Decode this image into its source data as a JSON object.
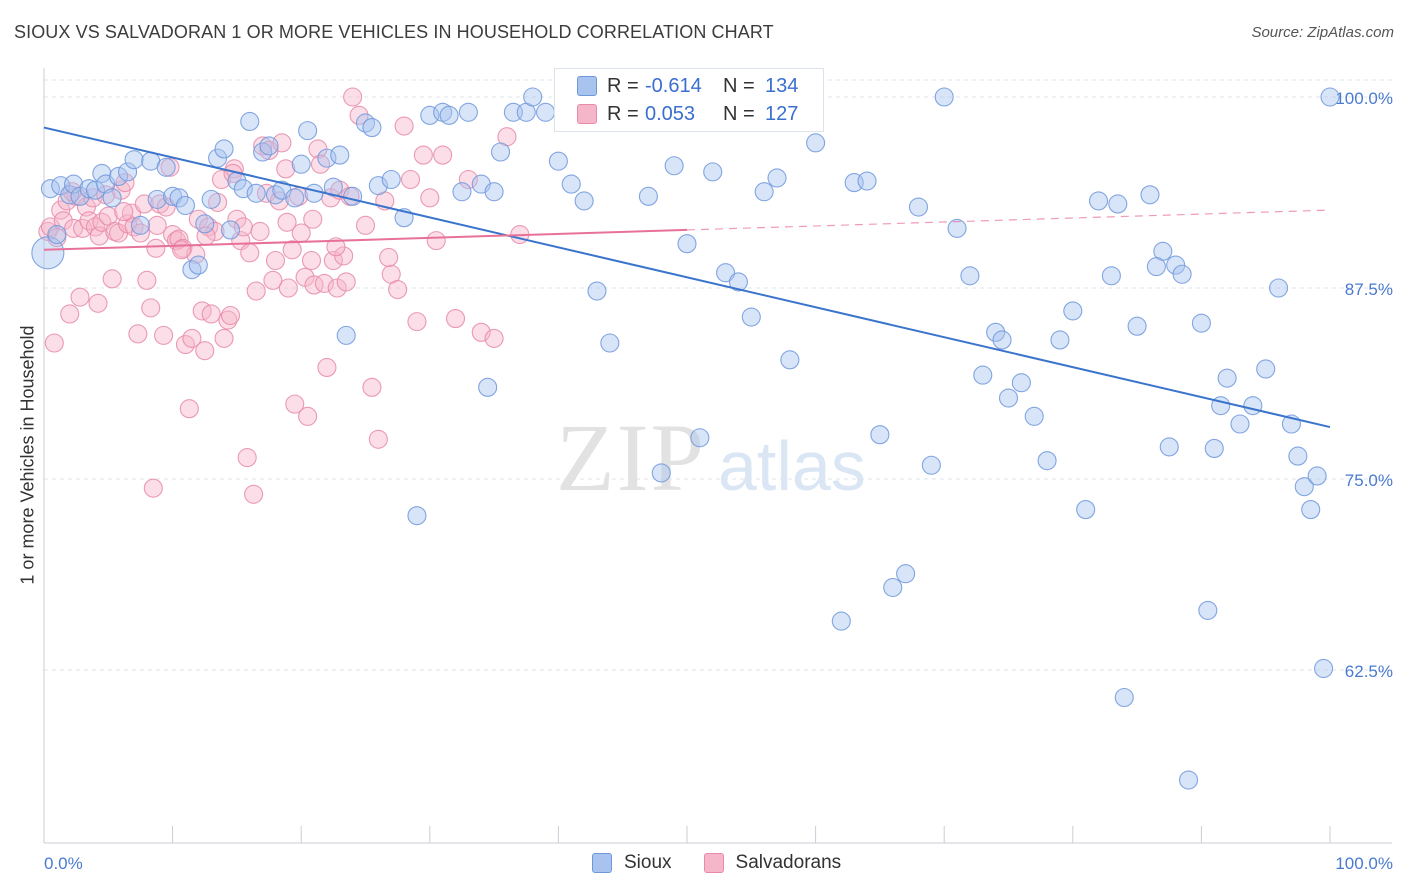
{
  "header": {
    "title": "SIOUX VS SALVADORAN 1 OR MORE VEHICLES IN HOUSEHOLD CORRELATION CHART",
    "source": "Source: ZipAtlas.com"
  },
  "watermark": {
    "zip": "ZIP",
    "atlas": "atlas"
  },
  "legend_top": {
    "rows": [
      {
        "r_label": "R =",
        "r_value": "-0.614",
        "n_label": "N =",
        "n_value": "134"
      },
      {
        "r_label": "R =",
        "r_value": "0.053",
        "n_label": "N =",
        "n_value": "127"
      }
    ]
  },
  "legend_bottom": {
    "items": [
      "Sioux",
      "Salvadorans"
    ]
  },
  "colors": {
    "sioux_fill": "#a9c3ef",
    "sioux_stroke": "#6f98dc",
    "sioux_line": "#3a74cc",
    "salv_fill": "#f6b6ca",
    "salv_stroke": "#e88aa8",
    "salv_line": "#e8719a",
    "tick_label": "#4a7ad0",
    "grid": "#dfe4ea"
  },
  "chart_data": {
    "type": "scatter",
    "title": "SIOUX VS SALVADORAN 1 OR MORE VEHICLES IN HOUSEHOLD CORRELATION CHART",
    "xlabel": "",
    "ylabel": "1 or more Vehicles in Household",
    "xlim": [
      0,
      100
    ],
    "ylim": [
      52,
      102
    ],
    "x_tick_labels": [
      "0.0%",
      "100.0%"
    ],
    "y_ticks": [
      62.5,
      75.0,
      87.5,
      100.0
    ],
    "y_tick_labels": [
      "62.5%",
      "75.0%",
      "87.5%",
      "100.0%"
    ],
    "grid": "horizontal dashed",
    "legend": "top-center and bottom-center",
    "series": [
      {
        "name": "Sioux",
        "r": -0.614,
        "n": 134,
        "trend": {
          "x": [
            0,
            100
          ],
          "y": [
            98.0,
            78.4
          ],
          "dashed_after": null
        },
        "points": [
          [
            0.3,
            89.8
          ],
          [
            0.5,
            94.0
          ],
          [
            1.0,
            91.0
          ],
          [
            1.3,
            94.2
          ],
          [
            2.0,
            93.6
          ],
          [
            2.3,
            94.3
          ],
          [
            2.8,
            93.5
          ],
          [
            3.5,
            94.0
          ],
          [
            4.0,
            93.9
          ],
          [
            4.5,
            95.0
          ],
          [
            4.8,
            94.3
          ],
          [
            5.3,
            93.4
          ],
          [
            5.8,
            94.8
          ],
          [
            6.5,
            95.1
          ],
          [
            7.0,
            95.9
          ],
          [
            7.5,
            91.6
          ],
          [
            8.3,
            95.8
          ],
          [
            8.8,
            93.3
          ],
          [
            9.5,
            95.4
          ],
          [
            10.0,
            93.5
          ],
          [
            10.5,
            93.4
          ],
          [
            11.0,
            92.9
          ],
          [
            11.5,
            88.7
          ],
          [
            12.0,
            89.0
          ],
          [
            12.5,
            91.7
          ],
          [
            13.0,
            93.3
          ],
          [
            13.5,
            96.0
          ],
          [
            14.0,
            96.6
          ],
          [
            14.5,
            91.3
          ],
          [
            15.0,
            94.5
          ],
          [
            15.5,
            94.0
          ],
          [
            16.0,
            98.4
          ],
          [
            16.5,
            93.7
          ],
          [
            17.0,
            96.4
          ],
          [
            17.5,
            96.8
          ],
          [
            18.0,
            93.6
          ],
          [
            18.5,
            93.9
          ],
          [
            19.5,
            93.4
          ],
          [
            20.0,
            95.6
          ],
          [
            20.5,
            97.8
          ],
          [
            21.0,
            93.7
          ],
          [
            22.0,
            96.0
          ],
          [
            22.5,
            94.1
          ],
          [
            23.0,
            96.2
          ],
          [
            23.5,
            84.4
          ],
          [
            24.0,
            93.5
          ],
          [
            25.0,
            98.3
          ],
          [
            25.5,
            98.0
          ],
          [
            26.0,
            94.2
          ],
          [
            27.0,
            94.6
          ],
          [
            28.0,
            92.1
          ],
          [
            29.0,
            72.6
          ],
          [
            30.0,
            98.8
          ],
          [
            31.0,
            99.0
          ],
          [
            31.5,
            98.8
          ],
          [
            32.5,
            93.8
          ],
          [
            33.0,
            99.0
          ],
          [
            34.0,
            94.3
          ],
          [
            34.5,
            81.0
          ],
          [
            35.0,
            93.8
          ],
          [
            35.5,
            96.4
          ],
          [
            36.5,
            99.0
          ],
          [
            37.5,
            99.0
          ],
          [
            38.0,
            100.0
          ],
          [
            39.0,
            99.0
          ],
          [
            40.0,
            95.8
          ],
          [
            41.0,
            94.3
          ],
          [
            42.0,
            93.2
          ],
          [
            43.0,
            87.3
          ],
          [
            44.0,
            83.9
          ],
          [
            45.0,
            99.0
          ],
          [
            46.0,
            100.0
          ],
          [
            47.0,
            93.5
          ],
          [
            48.0,
            75.4
          ],
          [
            49.0,
            95.5
          ],
          [
            50.0,
            90.4
          ],
          [
            51.0,
            77.7
          ],
          [
            52.0,
            95.1
          ],
          [
            53.0,
            88.5
          ],
          [
            54.0,
            87.9
          ],
          [
            55.0,
            85.6
          ],
          [
            56.0,
            93.8
          ],
          [
            57.0,
            94.7
          ],
          [
            58.0,
            82.8
          ],
          [
            60.0,
            97.0
          ],
          [
            62.0,
            65.7
          ],
          [
            63.0,
            94.4
          ],
          [
            64.0,
            94.5
          ],
          [
            65.0,
            77.9
          ],
          [
            66.0,
            67.9
          ],
          [
            67.0,
            68.8
          ],
          [
            68.0,
            92.8
          ],
          [
            69.0,
            75.9
          ],
          [
            70.0,
            100.0
          ],
          [
            71.0,
            91.4
          ],
          [
            72.0,
            88.3
          ],
          [
            73.0,
            81.8
          ],
          [
            74.0,
            84.6
          ],
          [
            75.0,
            80.3
          ],
          [
            76.0,
            81.3
          ],
          [
            77.0,
            79.1
          ],
          [
            78.0,
            76.2
          ],
          [
            79.0,
            84.1
          ],
          [
            80.0,
            86.0
          ],
          [
            81.0,
            73.0
          ],
          [
            82.0,
            93.2
          ],
          [
            83.0,
            88.3
          ],
          [
            84.0,
            60.7
          ],
          [
            85.0,
            85.0
          ],
          [
            86.0,
            93.6
          ],
          [
            87.0,
            89.9
          ],
          [
            87.5,
            77.1
          ],
          [
            88.0,
            89.0
          ],
          [
            88.5,
            88.4
          ],
          [
            89.0,
            55.3
          ],
          [
            90.0,
            85.2
          ],
          [
            90.5,
            66.4
          ],
          [
            91.0,
            77.0
          ],
          [
            92.0,
            81.6
          ],
          [
            93.0,
            78.6
          ],
          [
            94.0,
            79.8
          ],
          [
            95.0,
            82.2
          ],
          [
            96.0,
            87.5
          ],
          [
            97.0,
            78.6
          ],
          [
            97.5,
            76.5
          ],
          [
            98.0,
            74.5
          ],
          [
            98.5,
            73.0
          ],
          [
            99.0,
            75.2
          ],
          [
            99.5,
            62.6
          ],
          [
            100.0,
            100.0
          ],
          [
            91.5,
            79.8
          ],
          [
            86.5,
            88.9
          ],
          [
            74.5,
            84.1
          ],
          [
            83.5,
            93.0
          ]
        ]
      },
      {
        "name": "Salvadorans",
        "r": 0.053,
        "n": 127,
        "trend": {
          "x": [
            0,
            100
          ],
          "y": [
            90.0,
            92.6
          ],
          "dashed_after": 50
        },
        "points": [
          [
            0.3,
            91.2
          ],
          [
            0.5,
            91.5
          ],
          [
            0.8,
            83.9
          ],
          [
            1.0,
            90.8
          ],
          [
            1.3,
            92.6
          ],
          [
            1.5,
            91.9
          ],
          [
            1.8,
            93.2
          ],
          [
            2.0,
            85.8
          ],
          [
            2.3,
            91.4
          ],
          [
            2.5,
            93.5
          ],
          [
            2.8,
            86.9
          ],
          [
            3.0,
            91.4
          ],
          [
            3.3,
            92.8
          ],
          [
            3.5,
            91.9
          ],
          [
            3.8,
            93.4
          ],
          [
            4.0,
            91.5
          ],
          [
            4.3,
            90.9
          ],
          [
            4.5,
            91.8
          ],
          [
            4.8,
            93.6
          ],
          [
            5.0,
            92.2
          ],
          [
            5.3,
            88.1
          ],
          [
            5.5,
            91.2
          ],
          [
            5.8,
            91.1
          ],
          [
            6.0,
            93.9
          ],
          [
            6.3,
            94.4
          ],
          [
            6.5,
            91.7
          ],
          [
            6.8,
            92.4
          ],
          [
            7.0,
            91.5
          ],
          [
            7.3,
            84.5
          ],
          [
            7.5,
            91.1
          ],
          [
            7.8,
            93.0
          ],
          [
            8.0,
            88.0
          ],
          [
            8.3,
            86.2
          ],
          [
            8.5,
            74.4
          ],
          [
            8.8,
            91.6
          ],
          [
            9.0,
            93.0
          ],
          [
            9.3,
            84.4
          ],
          [
            9.5,
            92.8
          ],
          [
            9.8,
            95.4
          ],
          [
            10.0,
            91.0
          ],
          [
            10.3,
            90.6
          ],
          [
            10.5,
            90.7
          ],
          [
            10.8,
            90.1
          ],
          [
            11.0,
            83.8
          ],
          [
            11.3,
            79.6
          ],
          [
            11.5,
            84.2
          ],
          [
            11.8,
            89.7
          ],
          [
            12.0,
            92.0
          ],
          [
            12.3,
            86.0
          ],
          [
            12.5,
            83.4
          ],
          [
            12.8,
            91.5
          ],
          [
            13.0,
            85.8
          ],
          [
            13.3,
            91.2
          ],
          [
            13.5,
            93.1
          ],
          [
            13.8,
            94.6
          ],
          [
            14.0,
            84.2
          ],
          [
            14.3,
            85.4
          ],
          [
            14.5,
            85.7
          ],
          [
            14.8,
            95.3
          ],
          [
            15.0,
            92.0
          ],
          [
            15.3,
            90.6
          ],
          [
            15.5,
            91.5
          ],
          [
            15.8,
            76.4
          ],
          [
            16.0,
            89.8
          ],
          [
            16.3,
            74.0
          ],
          [
            16.5,
            87.3
          ],
          [
            16.8,
            91.2
          ],
          [
            17.0,
            96.8
          ],
          [
            17.3,
            93.7
          ],
          [
            17.5,
            96.5
          ],
          [
            17.8,
            88.0
          ],
          [
            18.0,
            89.3
          ],
          [
            18.3,
            93.2
          ],
          [
            18.5,
            97.0
          ],
          [
            18.8,
            95.3
          ],
          [
            19.0,
            87.5
          ],
          [
            19.3,
            90.0
          ],
          [
            19.5,
            79.9
          ],
          [
            19.8,
            93.5
          ],
          [
            20.0,
            91.1
          ],
          [
            20.3,
            88.2
          ],
          [
            20.5,
            79.1
          ],
          [
            20.8,
            89.3
          ],
          [
            21.0,
            87.7
          ],
          [
            21.3,
            96.6
          ],
          [
            21.5,
            95.6
          ],
          [
            21.8,
            87.8
          ],
          [
            22.0,
            82.3
          ],
          [
            22.3,
            93.4
          ],
          [
            22.5,
            89.3
          ],
          [
            22.8,
            87.5
          ],
          [
            23.0,
            93.9
          ],
          [
            23.3,
            89.6
          ],
          [
            23.5,
            87.9
          ],
          [
            24.0,
            100.0
          ],
          [
            24.5,
            98.8
          ],
          [
            25.0,
            91.6
          ],
          [
            25.5,
            81.0
          ],
          [
            26.0,
            77.6
          ],
          [
            26.5,
            93.2
          ],
          [
            27.0,
            88.4
          ],
          [
            27.5,
            87.4
          ],
          [
            28.0,
            98.1
          ],
          [
            28.5,
            94.6
          ],
          [
            29.0,
            85.3
          ],
          [
            29.5,
            96.2
          ],
          [
            30.0,
            93.4
          ],
          [
            30.5,
            90.6
          ],
          [
            31.0,
            96.2
          ],
          [
            32.0,
            85.5
          ],
          [
            33.0,
            94.6
          ],
          [
            34.0,
            84.6
          ],
          [
            35.0,
            84.2
          ],
          [
            36.0,
            97.4
          ],
          [
            37.0,
            91.0
          ],
          [
            26.8,
            89.5
          ],
          [
            23.8,
            93.5
          ],
          [
            12.6,
            90.9
          ],
          [
            8.7,
            90.1
          ],
          [
            6.2,
            92.5
          ],
          [
            2.2,
            93.8
          ],
          [
            4.2,
            86.5
          ],
          [
            10.7,
            90.0
          ],
          [
            14.7,
            95.0
          ],
          [
            18.9,
            91.8
          ],
          [
            22.7,
            90.2
          ],
          [
            20.9,
            92.0
          ]
        ]
      }
    ]
  }
}
